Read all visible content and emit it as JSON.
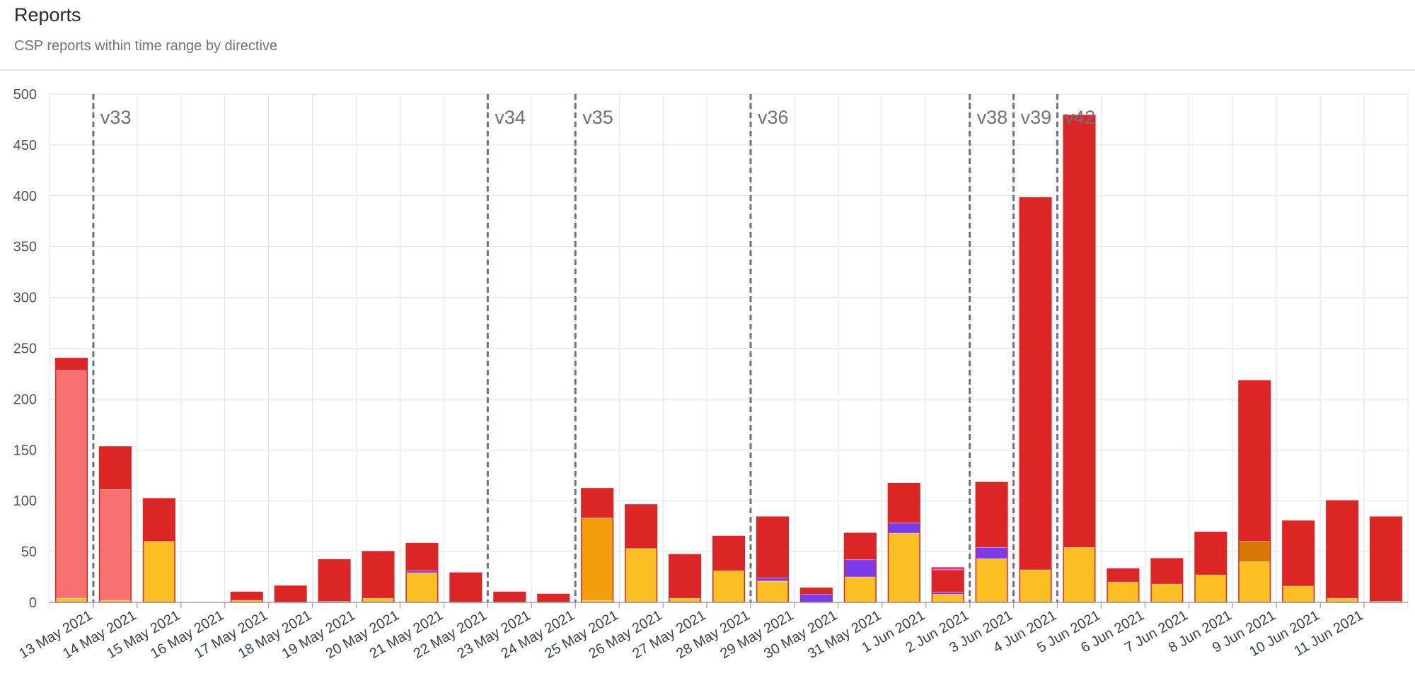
{
  "header": {
    "title": "Reports",
    "subtitle": "CSP reports within time range by directive"
  },
  "colors": {
    "red": "#dc2626",
    "salmon": "#f87171",
    "yellow": "#fbbf24",
    "orange": "#f59e0b",
    "dark_orange": "#d97706",
    "purple": "#7c3aed",
    "magenta": "#d946ef",
    "grid": "#e5e7eb",
    "marker": "#6b7280"
  },
  "chart_data": {
    "type": "bar",
    "stacked": true,
    "title": "",
    "xlabel": "",
    "ylabel": "",
    "ylim": [
      0,
      500
    ],
    "yticks": [
      0,
      50,
      100,
      150,
      200,
      250,
      300,
      350,
      400,
      450,
      500
    ],
    "grid": true,
    "categories": [
      "13 May 2021",
      "14 May 2021",
      "15 May 2021",
      "16 May 2021",
      "17 May 2021",
      "18 May 2021",
      "19 May 2021",
      "20 May 2021",
      "21 May 2021",
      "22 May 2021",
      "23 May 2021",
      "24 May 2021",
      "25 May 2021",
      "26 May 2021",
      "27 May 2021",
      "28 May 2021",
      "29 May 2021",
      "30 May 2021",
      "31 May 2021",
      "1 Jun 2021",
      "2 Jun 2021",
      "3 Jun 2021",
      "4 Jun 2021",
      "5 Jun 2021",
      "6 Jun 2021",
      "7 Jun 2021",
      "8 Jun 2021",
      "9 Jun 2021",
      "10 Jun 2021",
      "11 Jun 2021"
    ],
    "bars": [
      {
        "category": "13 May 2021",
        "segments": [
          [
            "yellow",
            4
          ],
          [
            "salmon",
            224
          ],
          [
            "red",
            12
          ]
        ]
      },
      {
        "category": "14 May 2021",
        "segments": [
          [
            "yellow",
            2
          ],
          [
            "salmon",
            109
          ],
          [
            "red",
            42
          ]
        ]
      },
      {
        "category": "15 May 2021",
        "segments": [
          [
            "yellow",
            60
          ],
          [
            "red",
            42
          ]
        ]
      },
      {
        "category": "16 May 2021",
        "segments": []
      },
      {
        "category": "17 May 2021",
        "segments": [
          [
            "yellow",
            2
          ],
          [
            "red",
            8
          ]
        ]
      },
      {
        "category": "18 May 2021",
        "segments": [
          [
            "red",
            16
          ]
        ]
      },
      {
        "category": "19 May 2021",
        "segments": [
          [
            "magenta",
            1
          ],
          [
            "red",
            41
          ]
        ]
      },
      {
        "category": "20 May 2021",
        "segments": [
          [
            "yellow",
            4
          ],
          [
            "red",
            46
          ]
        ]
      },
      {
        "category": "21 May 2021",
        "segments": [
          [
            "yellow",
            29
          ],
          [
            "purple",
            2
          ],
          [
            "red",
            27
          ]
        ]
      },
      {
        "category": "22 May 2021",
        "segments": [
          [
            "red",
            29
          ]
        ]
      },
      {
        "category": "23 May 2021",
        "segments": [
          [
            "red",
            10
          ]
        ]
      },
      {
        "category": "24 May 2021",
        "segments": [
          [
            "red",
            8
          ]
        ]
      },
      {
        "category": "25 May 2021",
        "segments": [
          [
            "yellow",
            2
          ],
          [
            "orange",
            81
          ],
          [
            "red",
            29
          ]
        ]
      },
      {
        "category": "26 May 2021",
        "segments": [
          [
            "yellow",
            53
          ],
          [
            "red",
            43
          ]
        ]
      },
      {
        "category": "27 May 2021",
        "segments": [
          [
            "yellow",
            4
          ],
          [
            "red",
            43
          ]
        ]
      },
      {
        "category": "28 May 2021",
        "segments": [
          [
            "yellow",
            31
          ],
          [
            "red",
            34
          ]
        ]
      },
      {
        "category": "29 May 2021",
        "segments": [
          [
            "yellow",
            21
          ],
          [
            "purple",
            3
          ],
          [
            "red",
            60
          ]
        ]
      },
      {
        "category": "30 May 2021",
        "segments": [
          [
            "purple",
            8
          ],
          [
            "red",
            6
          ]
        ]
      },
      {
        "category": "31 May 2021",
        "segments": [
          [
            "yellow",
            25
          ],
          [
            "purple",
            17
          ],
          [
            "red",
            26
          ]
        ]
      },
      {
        "category": "1 Jun 2021",
        "segments": [
          [
            "yellow",
            68
          ],
          [
            "purple",
            10
          ],
          [
            "red",
            39
          ]
        ]
      },
      {
        "category": "2 Jun 2021",
        "segments": [
          [
            "yellow",
            8
          ],
          [
            "purple",
            2
          ],
          [
            "red",
            22
          ],
          [
            "magenta",
            2
          ]
        ]
      },
      {
        "category": "3 Jun 2021",
        "segments": [
          [
            "yellow",
            43
          ],
          [
            "purple",
            11
          ],
          [
            "red",
            64
          ]
        ]
      },
      {
        "category": "4 Jun 2021",
        "segments": [
          [
            "yellow",
            32
          ],
          [
            "red",
            366
          ]
        ]
      },
      {
        "category": "5 Jun 2021",
        "segments": [
          [
            "yellow",
            54
          ],
          [
            "red",
            425
          ]
        ]
      },
      {
        "category": "6 Jun 2021",
        "segments": [
          [
            "yellow",
            20
          ],
          [
            "red",
            13
          ]
        ]
      },
      {
        "category": "7 Jun 2021",
        "segments": [
          [
            "yellow",
            18
          ],
          [
            "red",
            25
          ]
        ]
      },
      {
        "category": "8 Jun 2021",
        "segments": [
          [
            "yellow",
            27
          ],
          [
            "red",
            42
          ]
        ]
      },
      {
        "category": "9 Jun 2021",
        "segments": [
          [
            "yellow",
            40
          ],
          [
            "dark_orange",
            20
          ],
          [
            "red",
            158
          ]
        ]
      },
      {
        "category": "10 Jun 2021",
        "segments": [
          [
            "yellow",
            16
          ],
          [
            "red",
            64
          ]
        ]
      },
      {
        "category": "11 Jun 2021",
        "segments": [
          [
            "yellow",
            4
          ],
          [
            "red",
            96
          ]
        ]
      },
      {
        "category": "",
        "segments": [
          [
            "yellow",
            1
          ],
          [
            "red",
            83
          ]
        ]
      }
    ],
    "markers": [
      {
        "label": "v33",
        "between": [
          "13 May 2021",
          "14 May 2021"
        ]
      },
      {
        "label": "v34",
        "between": [
          "22 May 2021",
          "23 May 2021"
        ]
      },
      {
        "label": "v35",
        "between": [
          "24 May 2021",
          "25 May 2021"
        ]
      },
      {
        "label": "v36",
        "between": [
          "28 May 2021",
          "29 May 2021"
        ]
      },
      {
        "label": "v38",
        "between": [
          "2 Jun 2021",
          "3 Jun 2021"
        ]
      },
      {
        "label": "v39",
        "between": [
          "3 Jun 2021",
          "4 Jun 2021"
        ]
      },
      {
        "label": "v42",
        "between": [
          "4 Jun 2021",
          "5 Jun 2021"
        ]
      }
    ]
  }
}
